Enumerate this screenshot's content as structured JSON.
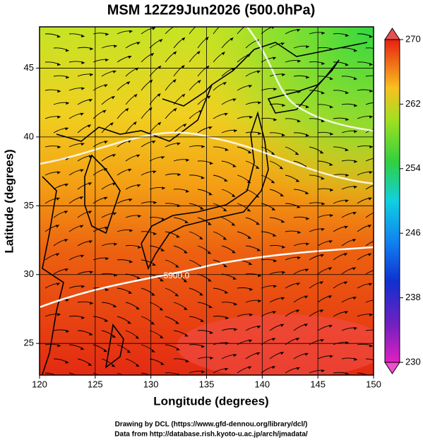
{
  "title": "MSM 12Z29Jun2026 (500.0hPa)",
  "x_axis": {
    "label": "Longitude (degrees)",
    "lim": [
      120,
      150
    ],
    "ticks": [
      120,
      125,
      130,
      135,
      140,
      145,
      150
    ]
  },
  "y_axis": {
    "label": "Latitude  (degrees)",
    "lim": [
      22.7,
      48
    ],
    "ticks": [
      25,
      30,
      35,
      40,
      45
    ]
  },
  "colorbar": {
    "lim": [
      230,
      270
    ],
    "ticks": [
      230,
      238,
      246,
      254,
      262,
      270
    ]
  },
  "contour_labels": [
    {
      "text": "5900.0",
      "lon": 132.3,
      "lat": 29.9
    }
  ],
  "footer": [
    "Drawing by DCL (https://www.gfd-dennou.org/library/dcl/)",
    "Data from http://database.rish.kyoto-u.ac.jp/arch/jmadata/"
  ]
}
